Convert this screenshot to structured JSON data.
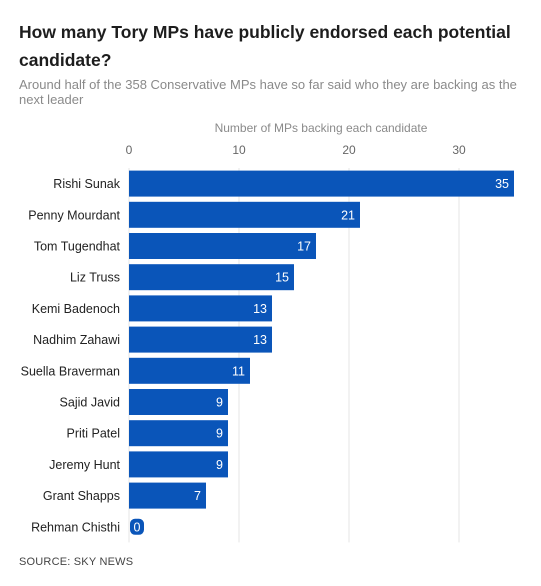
{
  "title": "How many Tory MPs have publicly endorsed each potential candidate?",
  "subtitle": "Around half of the 358 Conservative MPs have so far said who they are backing as the next leader",
  "source": "SOURCE: SKY NEWS",
  "colors": {
    "bar": "#0a55b9",
    "grid": "#e6e6e6",
    "zero_label_bg": "#0a55b9"
  },
  "chart_data": {
    "type": "bar",
    "orientation": "horizontal",
    "xlabel": "Number of MPs backing each candidate",
    "xlim": [
      0,
      35
    ],
    "xticks": [
      0,
      10,
      20,
      30
    ],
    "grid": true,
    "categories": [
      "Rishi Sunak",
      "Penny Mourdant",
      "Tom Tugendhat",
      "Liz Truss",
      "Kemi Badenoch",
      "Nadhim Zahawi",
      "Suella Braverman",
      "Sajid Javid",
      "Priti Patel",
      "Jeremy Hunt",
      "Grant Shapps",
      "Rehman Chisthi"
    ],
    "values": [
      35,
      21,
      17,
      15,
      13,
      13,
      11,
      9,
      9,
      9,
      7,
      0
    ]
  }
}
